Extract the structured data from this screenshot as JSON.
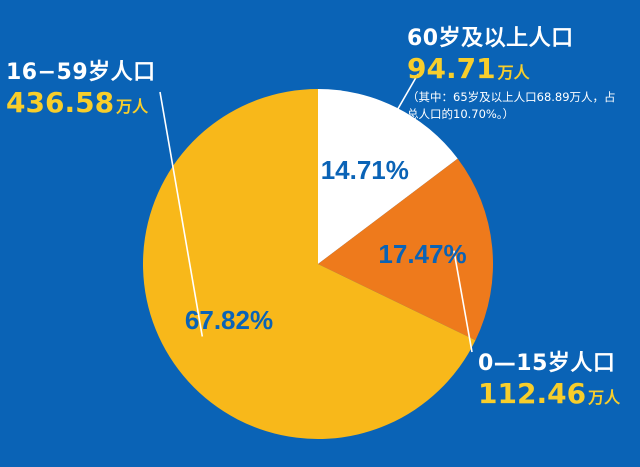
{
  "chart_data": {
    "type": "pie",
    "start_angle_deg": 90,
    "direction": "clockwise",
    "slices": [
      {
        "key": "s60",
        "name": "60岁及以上人口",
        "value": 94.71,
        "unit": "万人",
        "percent": 14.71,
        "percent_label": "14.71%",
        "color": "#FFFFFF",
        "label_color": "#0A63B6",
        "note": "（其中：65岁及以上人口68.89万人，占总人口的10.70%。）"
      },
      {
        "key": "s0_15",
        "name": "0—15岁人口",
        "value": 112.46,
        "unit": "万人",
        "percent": 17.47,
        "percent_label": "17.47%",
        "color": "#EE7A1C",
        "label_color": "#0A63B6"
      },
      {
        "key": "s16_59",
        "name": "16−59岁人口",
        "value": 436.58,
        "unit": "万人",
        "percent": 67.82,
        "percent_label": "67.82%",
        "color": "#F8B81A",
        "label_color": "#0A63B6"
      }
    ]
  }
}
